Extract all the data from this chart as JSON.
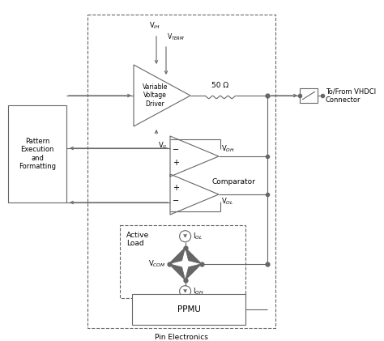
{
  "figsize": [
    4.74,
    4.21
  ],
  "dpi": 100,
  "bg_color": "#ffffff",
  "line_color": "#666666",
  "text_color": "#000000",
  "pin_electronics_label": "Pin Electronics",
  "pattern_label": "Pattern\nExecution\nand\nFormatting",
  "vvd_label": "Variable\nVoltage\nDriver",
  "resistor_label": "50 Ω",
  "comparator_label": "Comparator",
  "active_load_label": "Active\nLoad",
  "ppmu_label": "PPMU",
  "connector_label": "To/From VHDCI\nConnector",
  "vih_label": "V$_{IH}$",
  "vterm_label": "V$_{TERM}$",
  "vil_label": "V$_{IL}$",
  "voh_label": "V$_{OH}$",
  "vol_label": "V$_{OL}$",
  "iol_label": "I$_{OL}$",
  "ioh_label": "I$_{OH}$",
  "vcom_label": "V$_{COM}$"
}
